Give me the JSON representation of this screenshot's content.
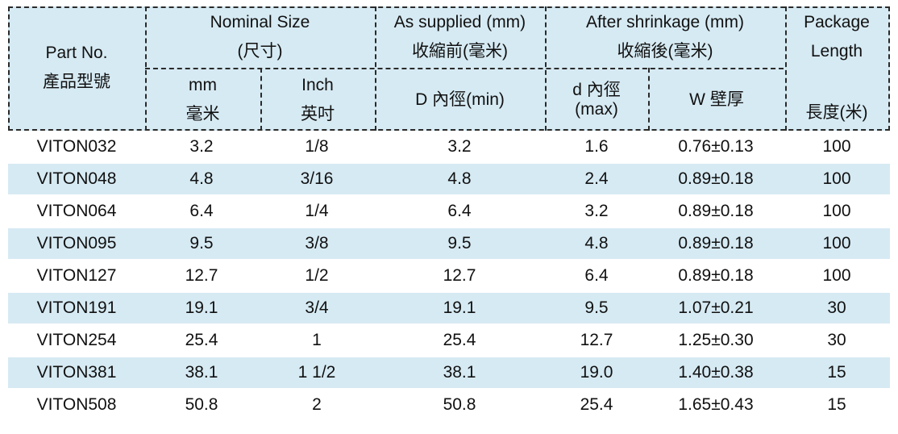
{
  "header": {
    "part_no": {
      "en": "Part No.",
      "zh": "產品型號"
    },
    "nominal": {
      "en": "Nominal Size",
      "zh": "(尺寸)"
    },
    "nominal_mm": {
      "en": "mm",
      "zh": "毫米"
    },
    "nominal_inch": {
      "en": "Inch",
      "zh": "英吋"
    },
    "supplied": {
      "en": "As supplied (mm)",
      "zh": "收縮前(毫米)"
    },
    "supplied_d": "D 內徑(min)",
    "shrink": {
      "en": "After shrinkage (mm)",
      "zh": "收縮後(毫米)"
    },
    "shrink_d": {
      "l1": "d 內徑",
      "l2": "(max)"
    },
    "shrink_w": "W 壁厚",
    "package": {
      "l1": "Package",
      "l2": "Length",
      "zh": "長度(米)"
    }
  },
  "rows": [
    [
      "VITON032",
      "3.2",
      "1/8",
      "3.2",
      "1.6",
      "0.76±0.13",
      "100"
    ],
    [
      "VITON048",
      "4.8",
      "3/16",
      "4.8",
      "2.4",
      "0.89±0.18",
      "100"
    ],
    [
      "VITON064",
      "6.4",
      "1/4",
      "6.4",
      "3.2",
      "0.89±0.18",
      "100"
    ],
    [
      "VITON095",
      "9.5",
      "3/8",
      "9.5",
      "4.8",
      "0.89±0.18",
      "100"
    ],
    [
      "VITON127",
      "12.7",
      "1/2",
      "12.7",
      "6.4",
      "0.89±0.18",
      "100"
    ],
    [
      "VITON191",
      "19.1",
      "3/4",
      "19.1",
      "9.5",
      "1.07±0.21",
      "30"
    ],
    [
      "VITON254",
      "25.4",
      "1",
      "25.4",
      "12.7",
      "1.25±0.30",
      "30"
    ],
    [
      "VITON381",
      "38.1",
      "1 1/2",
      "38.1",
      "19.0",
      "1.40±0.38",
      "15"
    ],
    [
      "VITON508",
      "50.8",
      "2",
      "50.8",
      "25.4",
      "1.65±0.43",
      "15"
    ]
  ],
  "colors": {
    "header_bg": "#d6eaf3",
    "stripe_bg": "#d6eaf3",
    "border": "#2a2a2a"
  }
}
